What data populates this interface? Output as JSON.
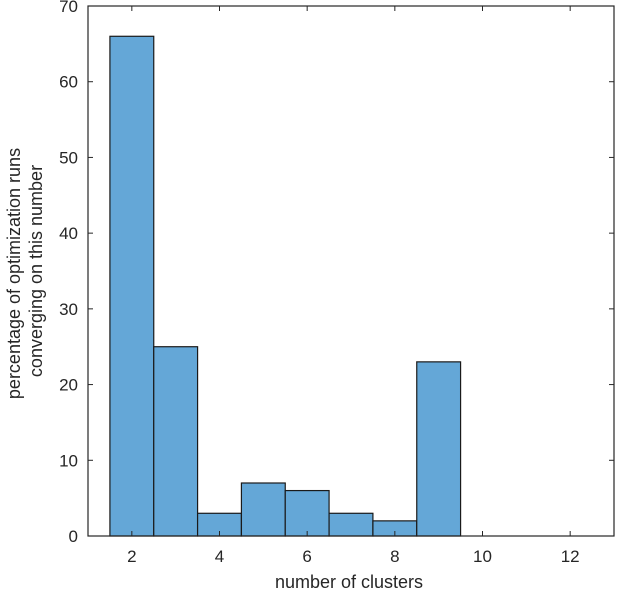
{
  "chart_data": {
    "type": "bar",
    "categories": [
      2,
      3,
      4,
      5,
      6,
      7,
      8,
      9,
      10,
      11,
      12
    ],
    "values": [
      66,
      25,
      3,
      7,
      6,
      3,
      2,
      23,
      0,
      0,
      0
    ],
    "bin_width": 1,
    "xlabel": "number of clusters",
    "ylabel": [
      "percentage of optimization runs",
      "converging on this number"
    ],
    "xlim": [
      1,
      13
    ],
    "ylim": [
      0,
      70
    ],
    "xticks": [
      2,
      4,
      6,
      8,
      10,
      12
    ],
    "yticks": [
      0,
      10,
      20,
      30,
      40,
      50,
      60,
      70
    ],
    "grid": false,
    "bar_color": "#6baed6",
    "bar_fill": "#64a7d7",
    "edge_color": "#1a1a1a",
    "axis_color": "#262626"
  }
}
